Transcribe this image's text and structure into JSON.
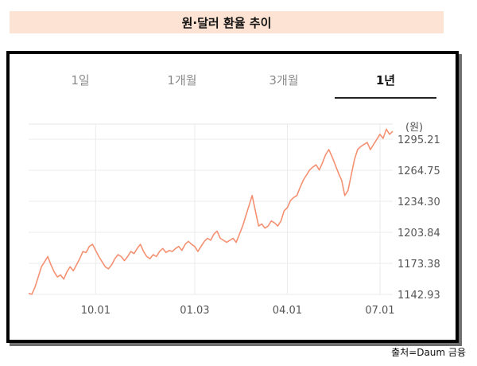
{
  "header": {
    "title": "원·달러 환율 추이"
  },
  "tabs": [
    {
      "label": "1일",
      "active": false
    },
    {
      "label": "1개월",
      "active": false
    },
    {
      "label": "3개월",
      "active": false
    },
    {
      "label": "1년",
      "active": true
    }
  ],
  "footer": {
    "source": "출처=Daum 금융"
  },
  "chart_data": {
    "type": "line",
    "unit_label": "(원)",
    "y_ticks": [
      1142.93,
      1173.38,
      1203.84,
      1234.3,
      1264.75,
      1295.21
    ],
    "y_tick_labels": [
      "1142.93",
      "1173.38",
      "1203.84",
      "1234.30",
      "1264.75",
      "1295.21"
    ],
    "ylim": [
      1142.93,
      1310
    ],
    "x_ticks": [
      "10.01",
      "01.03",
      "04.01",
      "07.01"
    ],
    "x_tick_index": [
      21,
      52,
      81,
      110
    ],
    "grid": true,
    "color": "#f59173",
    "series": [
      {
        "values": [
          1144,
          1143,
          1150,
          1160,
          1170,
          1175,
          1180,
          1172,
          1165,
          1160,
          1162,
          1158,
          1165,
          1170,
          1166,
          1172,
          1178,
          1185,
          1184,
          1190,
          1192,
          1186,
          1180,
          1175,
          1170,
          1168,
          1172,
          1178,
          1182,
          1180,
          1176,
          1180,
          1185,
          1183,
          1188,
          1192,
          1185,
          1180,
          1178,
          1182,
          1180,
          1185,
          1188,
          1184,
          1186,
          1185,
          1188,
          1190,
          1186,
          1192,
          1195,
          1192,
          1190,
          1185,
          1190,
          1195,
          1198,
          1196,
          1202,
          1205,
          1198,
          1196,
          1194,
          1196,
          1198,
          1194,
          1202,
          1210,
          1220,
          1230,
          1240,
          1225,
          1210,
          1212,
          1208,
          1210,
          1215,
          1213,
          1210,
          1215,
          1225,
          1228,
          1235,
          1238,
          1240,
          1248,
          1255,
          1260,
          1265,
          1268,
          1270,
          1265,
          1272,
          1280,
          1285,
          1278,
          1270,
          1262,
          1255,
          1240,
          1245,
          1260,
          1275,
          1285,
          1288,
          1290,
          1292,
          1285,
          1290,
          1295,
          1300,
          1296,
          1305,
          1300,
          1303
        ]
      }
    ]
  }
}
